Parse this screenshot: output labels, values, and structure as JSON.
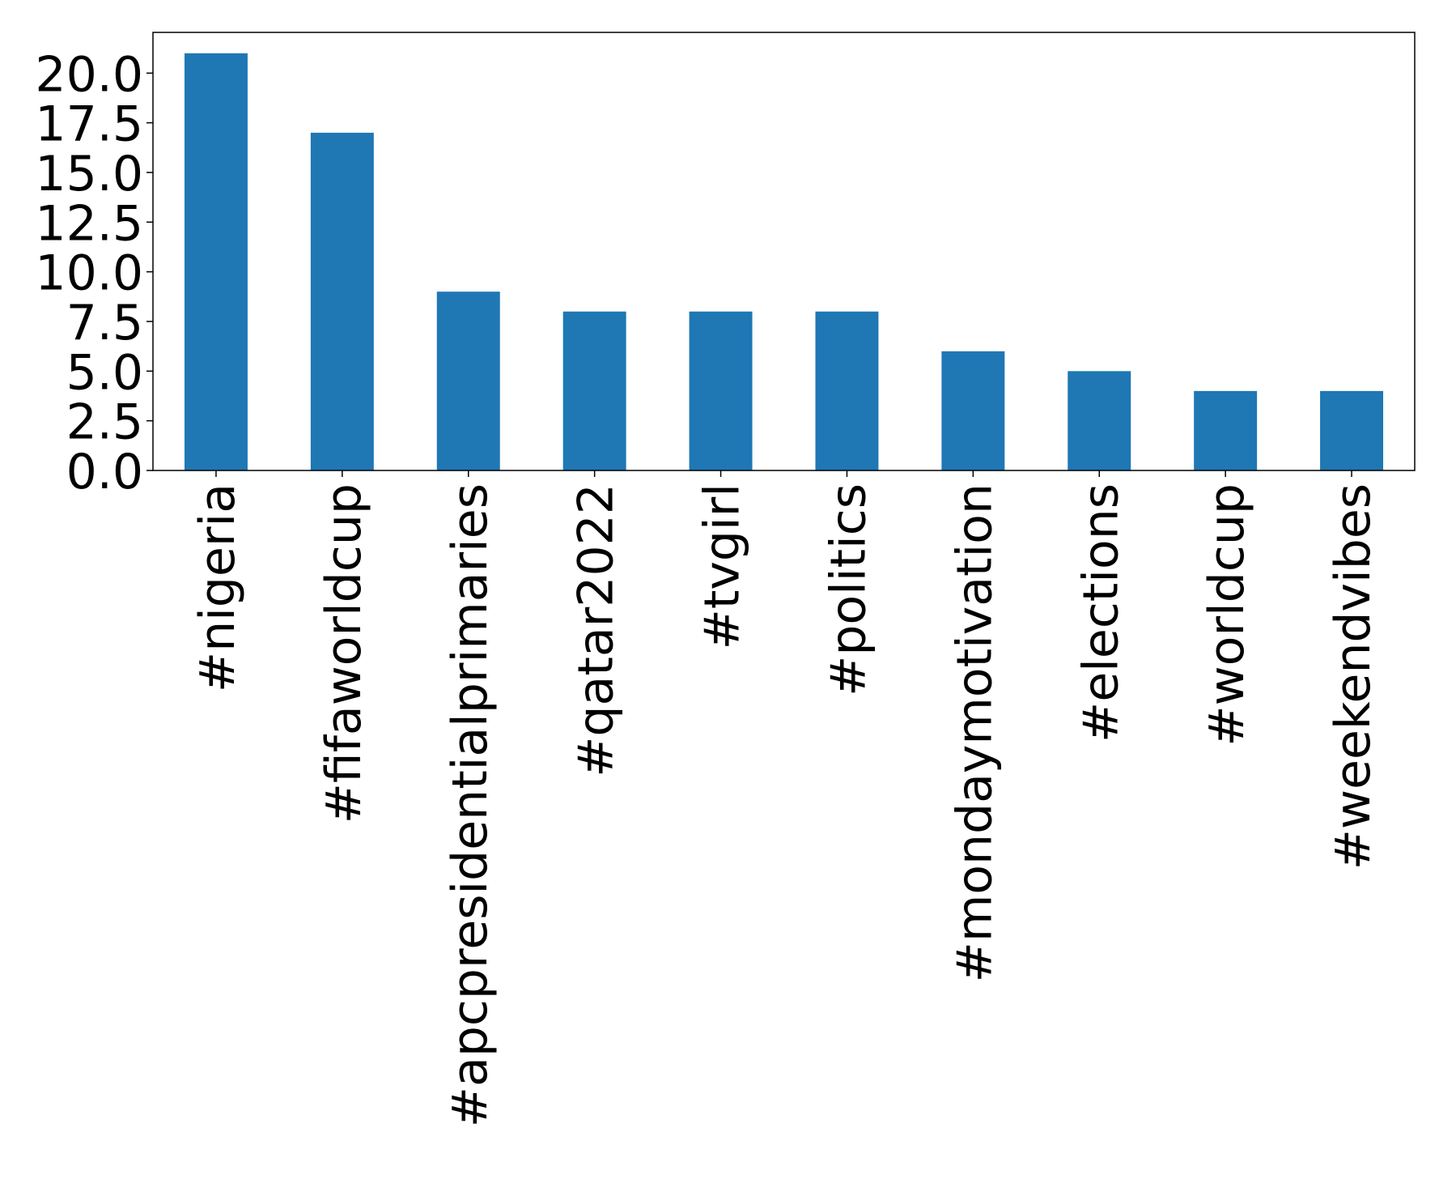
{
  "chart_data": {
    "type": "bar",
    "categories": [
      "#nigeria",
      "#fifaworldcup",
      "#apcpresidentialprimaries",
      "#qatar2022",
      "#tvgirl",
      "#politics",
      "#mondaymotivation",
      "#elections",
      "#worldcup",
      "#weekendvibes"
    ],
    "values": [
      21,
      17,
      9,
      8,
      8,
      8,
      6,
      5,
      4,
      4
    ],
    "color": "#1f77b4",
    "ylim": [
      0,
      22.05
    ],
    "yticks": [
      {
        "value": 0,
        "label": "0.0"
      },
      2.5,
      {
        "value": 5,
        "label": "5.0"
      },
      7.5,
      {
        "value": 10,
        "label": "10.0"
      },
      12.5,
      {
        "value": 15,
        "label": "15.0"
      },
      17.5,
      {
        "value": 20,
        "label": "20.0"
      }
    ],
    "grid": false
  }
}
